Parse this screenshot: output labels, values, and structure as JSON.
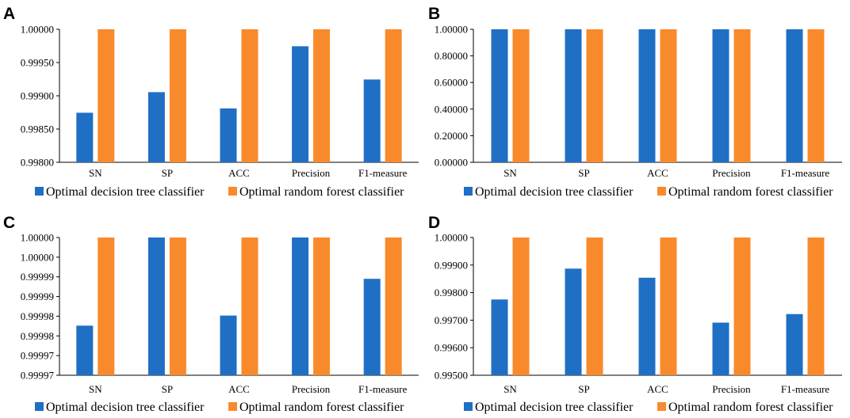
{
  "colors": {
    "series1": "#1f6fc5",
    "series2": "#f98a2b"
  },
  "chart_data": [
    {
      "panel": "A",
      "type": "bar",
      "categories": [
        "SN",
        "SP",
        "ACC",
        "Precision",
        "F1-measure"
      ],
      "series": [
        {
          "name": "Optimal decision tree classifier",
          "values": [
            0.998745,
            0.999055,
            0.99881,
            0.999745,
            0.999245
          ]
        },
        {
          "name": "Optimal random forest classifier",
          "values": [
            1.0,
            1.0,
            1.0,
            1.0,
            1.0
          ]
        }
      ],
      "ylim": [
        0.998,
        1.0
      ],
      "yticks": [
        "0.99800",
        "0.99850",
        "0.99900",
        "0.99950",
        "1.00000"
      ],
      "title": "",
      "xlabel": "",
      "ylabel": ""
    },
    {
      "panel": "B",
      "type": "bar",
      "categories": [
        "SN",
        "SP",
        "ACC",
        "Precision",
        "F1-measure"
      ],
      "series": [
        {
          "name": "Optimal decision tree classifier",
          "values": [
            1.0,
            1.0,
            1.0,
            1.0,
            1.0
          ]
        },
        {
          "name": "Optimal random forest classifier",
          "values": [
            1.0,
            1.0,
            1.0,
            1.0,
            1.0
          ]
        }
      ],
      "ylim": [
        0,
        1.0
      ],
      "yticks": [
        "0.00000",
        "0.20000",
        "0.40000",
        "0.60000",
        "0.80000",
        "1.00000"
      ],
      "title": "",
      "xlabel": "",
      "ylabel": ""
    },
    {
      "panel": "C",
      "type": "bar",
      "categories": [
        "SN",
        "SP",
        "ACC",
        "Precision",
        "F1-measure"
      ],
      "series": [
        {
          "name": "Optimal decision tree classifier",
          "values": [
            0.9999808,
            1.0,
            0.999983,
            1.0,
            0.999991
          ]
        },
        {
          "name": "Optimal random forest classifier",
          "values": [
            1.0,
            1.0,
            1.0,
            1.0,
            1.0
          ]
        }
      ],
      "ylim": [
        0.99997,
        1.0
      ],
      "yticks": [
        "0.99997",
        "0.99997",
        "0.99998",
        "0.99998",
        "0.99999",
        "0.99999",
        "1.00000",
        "1.00000"
      ],
      "title": "",
      "xlabel": "",
      "ylabel": ""
    },
    {
      "panel": "D",
      "type": "bar",
      "categories": [
        "SN",
        "SP",
        "ACC",
        "Precision",
        "F1-measure"
      ],
      "series": [
        {
          "name": "Optimal decision tree classifier",
          "values": [
            0.99775,
            0.99887,
            0.99854,
            0.99691,
            0.99722
          ]
        },
        {
          "name": "Optimal random forest classifier",
          "values": [
            1.0,
            1.0,
            1.0,
            1.0,
            1.0
          ]
        }
      ],
      "ylim": [
        0.995,
        1.0
      ],
      "yticks": [
        "0.99500",
        "0.99600",
        "0.99700",
        "0.99800",
        "0.99900",
        "1.00000"
      ],
      "title": "",
      "xlabel": "",
      "ylabel": ""
    }
  ]
}
